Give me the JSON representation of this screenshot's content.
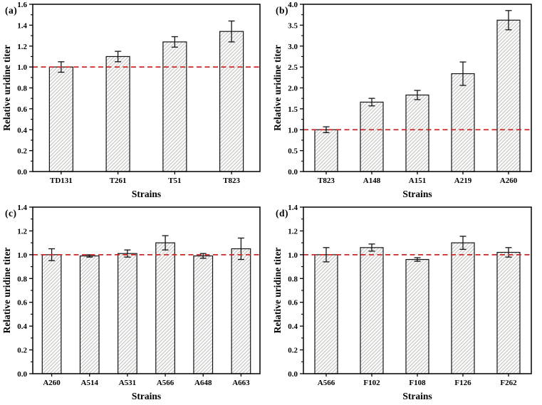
{
  "figure": {
    "background": "#ffffff",
    "ref_line_color": "#cc2929",
    "bar_fill": "#fcfbfa",
    "hatch_color": "#c3c3c3",
    "edge_color": "#141414",
    "spine_color": "#000000",
    "text_color": "#000000"
  },
  "chart_data": [
    {
      "type": "bar",
      "panel": "(a)",
      "xlabel": "Strains",
      "ylabel": "Relative uridine titer",
      "categories": [
        "TD131",
        "T261",
        "T51",
        "T823"
      ],
      "values": [
        1.0,
        1.1,
        1.24,
        1.34
      ],
      "errors": [
        0.05,
        0.05,
        0.05,
        0.1
      ],
      "ylim": [
        0.0,
        1.6
      ],
      "ytick_step": 0.2,
      "ref_line": 1.0,
      "grid": "off",
      "legend": "none",
      "hatch": "diagonal"
    },
    {
      "type": "bar",
      "panel": "(b)",
      "xlabel": "Strains",
      "ylabel": "Relative uridine titer",
      "categories": [
        "T823",
        "A148",
        "A151",
        "A219",
        "A260"
      ],
      "values": [
        1.0,
        1.66,
        1.83,
        2.34,
        3.62
      ],
      "errors": [
        0.07,
        0.09,
        0.11,
        0.28,
        0.23
      ],
      "ylim": [
        0.0,
        4.0
      ],
      "ytick_step": 0.5,
      "ref_line": 1.0,
      "grid": "off",
      "legend": "none",
      "hatch": "diagonal"
    },
    {
      "type": "bar",
      "panel": "(c)",
      "xlabel": "Strains",
      "ylabel": "Relative uridine titer",
      "categories": [
        "A260",
        "A514",
        "A531",
        "A566",
        "A648",
        "A663"
      ],
      "values": [
        1.0,
        0.99,
        1.01,
        1.1,
        0.99,
        1.05
      ],
      "errors": [
        0.05,
        0.01,
        0.03,
        0.06,
        0.02,
        0.09
      ],
      "ylim": [
        0.0,
        1.4
      ],
      "ytick_step": 0.2,
      "ref_line": 1.0,
      "grid": "off",
      "legend": "none",
      "hatch": "diagonal"
    },
    {
      "type": "bar",
      "panel": "(d)",
      "xlabel": "Strains",
      "ylabel": "Relative uridine titer",
      "categories": [
        "A566",
        "F102",
        "F108",
        "F126",
        "F262"
      ],
      "values": [
        1.0,
        1.06,
        0.96,
        1.1,
        1.02
      ],
      "errors": [
        0.06,
        0.03,
        0.015,
        0.055,
        0.04
      ],
      "ylim": [
        0.0,
        1.4
      ],
      "ytick_step": 0.2,
      "ref_line": 1.0,
      "grid": "off",
      "legend": "none",
      "hatch": "diagonal"
    }
  ]
}
